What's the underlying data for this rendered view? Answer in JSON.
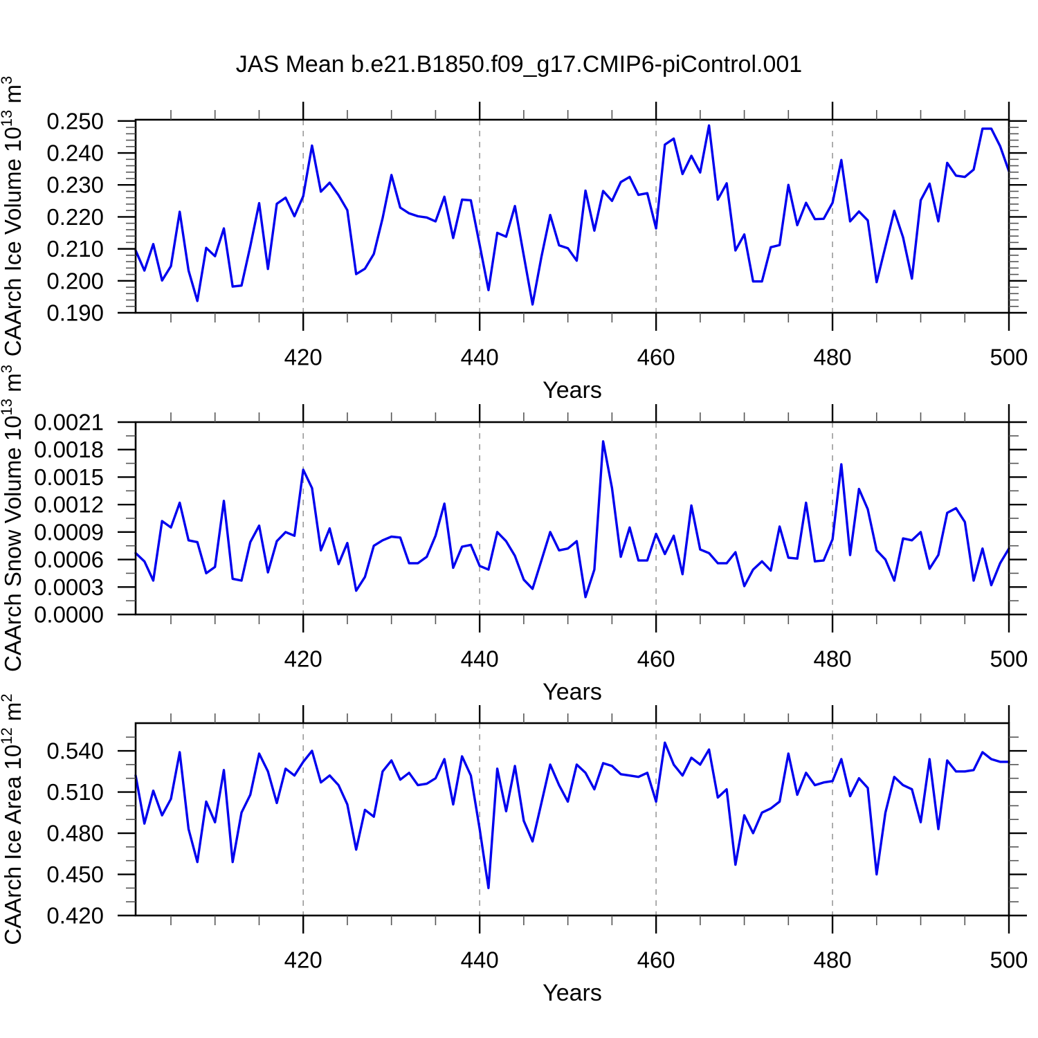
{
  "title": "JAS Mean b.e21.B1850.f09_g17.CMIP6-piControl.001",
  "colors": {
    "line": "#0000ee",
    "axis": "#000000",
    "major_tick": "#000000",
    "minor_tick": "#555555",
    "gridline": "#999999",
    "text": "#000000",
    "background": "#ffffff"
  },
  "chart_data": [
    {
      "type": "line",
      "ylabel": "CAArch Ice Volume 10¹³ m³",
      "ylabel_segments": [
        [
          "t",
          "CAArch Ice Volume 10"
        ],
        [
          "s",
          "13"
        ],
        [
          "t",
          " m"
        ],
        [
          "s",
          "3"
        ]
      ],
      "xlabel": "Years",
      "x_start": 401,
      "x_step": 1,
      "xlim": [
        401,
        500
      ],
      "x_major_ticks": [
        420,
        440,
        460,
        480,
        500
      ],
      "x_minor_step": 5,
      "x_gridlines": [
        420,
        440,
        460,
        480
      ],
      "ylim": [
        0.19,
        0.2504
      ],
      "y_major_ticks": [
        0.19,
        0.2,
        0.21,
        0.22,
        0.23,
        0.24,
        0.25
      ],
      "y_tick_labels": [
        "0.190",
        "0.200",
        "0.210",
        "0.220",
        "0.230",
        "0.240",
        "0.250"
      ],
      "y_minor_step": 0.002,
      "values": [
        0.2095,
        0.2032,
        0.2115,
        0.2001,
        0.2046,
        0.2216,
        0.2032,
        0.1937,
        0.2103,
        0.2077,
        0.2164,
        0.1982,
        0.1985,
        0.2108,
        0.2243,
        0.2037,
        0.2241,
        0.226,
        0.2202,
        0.2265,
        0.2423,
        0.2279,
        0.2307,
        0.2268,
        0.2221,
        0.2021,
        0.2038,
        0.2084,
        0.2196,
        0.2331,
        0.2229,
        0.2211,
        0.2202,
        0.2198,
        0.2186,
        0.2263,
        0.2134,
        0.2254,
        0.2252,
        0.2112,
        0.1971,
        0.215,
        0.2138,
        0.2234,
        0.2079,
        0.1926,
        0.2075,
        0.2206,
        0.2111,
        0.2102,
        0.2063,
        0.2282,
        0.2157,
        0.2281,
        0.225,
        0.2309,
        0.2325,
        0.2269,
        0.2274,
        0.2164,
        0.2426,
        0.2445,
        0.2334,
        0.2391,
        0.2339,
        0.2486,
        0.2254,
        0.2305,
        0.2095,
        0.2145,
        0.1998,
        0.1998,
        0.2105,
        0.2112,
        0.23,
        0.2174,
        0.2244,
        0.2193,
        0.2194,
        0.2244,
        0.2378,
        0.2186,
        0.2217,
        0.2189,
        0.1996,
        0.2107,
        0.2219,
        0.2136,
        0.2007,
        0.2252,
        0.2304,
        0.2186,
        0.2369,
        0.2329,
        0.2325,
        0.2348,
        0.2476,
        0.2476,
        0.2421,
        0.2343
      ]
    },
    {
      "type": "line",
      "ylabel": "CAArch Snow Volume 10¹³ m³",
      "ylabel_segments": [
        [
          "t",
          "CAArch Snow Volume 10"
        ],
        [
          "s",
          "13"
        ],
        [
          "t",
          " m"
        ],
        [
          "s",
          "3"
        ]
      ],
      "xlabel": "Years",
      "x_start": 401,
      "x_step": 1,
      "xlim": [
        401,
        500
      ],
      "x_major_ticks": [
        420,
        440,
        460,
        480,
        500
      ],
      "x_minor_step": 5,
      "x_gridlines": [
        420,
        440,
        460,
        480
      ],
      "ylim": [
        0.0,
        0.0021
      ],
      "y_major_ticks": [
        0.0,
        0.0003,
        0.0006,
        0.0009,
        0.0012,
        0.0015,
        0.0018,
        0.0021
      ],
      "y_tick_labels": [
        "0.0000",
        "0.0003",
        "0.0006",
        "0.0009",
        "0.0012",
        "0.0015",
        "0.0018",
        "0.0021"
      ],
      "y_minor_step": 0.00015,
      "values": [
        0.00067,
        0.00058,
        0.00037,
        0.00102,
        0.00095,
        0.00122,
        0.00081,
        0.00079,
        0.00045,
        0.00052,
        0.00124,
        0.00039,
        0.00037,
        0.00079,
        0.00097,
        0.00046,
        0.0008,
        0.0009,
        0.00086,
        0.00158,
        0.00138,
        0.0007,
        0.00094,
        0.00055,
        0.00078,
        0.00026,
        0.00041,
        0.00075,
        0.00081,
        0.00085,
        0.00084,
        0.00056,
        0.00056,
        0.00063,
        0.00086,
        0.00121,
        0.00051,
        0.00074,
        0.00076,
        0.00053,
        0.00049,
        0.0009,
        0.0008,
        0.00064,
        0.00038,
        0.00028,
        0.00059,
        0.0009,
        0.0007,
        0.00072,
        0.0008,
        0.00019,
        0.00049,
        0.00189,
        0.00138,
        0.00063,
        0.00095,
        0.00059,
        0.00059,
        0.00088,
        0.00066,
        0.00086,
        0.00044,
        0.00119,
        0.00071,
        0.00067,
        0.00056,
        0.00056,
        0.00068,
        0.00031,
        0.00049,
        0.00058,
        0.00048,
        0.00096,
        0.00062,
        0.00061,
        0.00122,
        0.00058,
        0.00059,
        0.00082,
        0.00164,
        0.00065,
        0.00137,
        0.00115,
        0.0007,
        0.0006,
        0.00037,
        0.00083,
        0.00081,
        0.0009,
        0.0005,
        0.00065,
        0.00111,
        0.00116,
        0.00101,
        0.00037,
        0.00072,
        0.00032,
        0.00056,
        0.00072
      ]
    },
    {
      "type": "line",
      "ylabel": "CAArch Ice Area 10¹² m²",
      "ylabel_segments": [
        [
          "t",
          "CAArch Ice Area 10"
        ],
        [
          "s",
          "12"
        ],
        [
          "t",
          " m"
        ],
        [
          "s",
          "2"
        ]
      ],
      "xlabel": "Years",
      "x_start": 401,
      "x_step": 1,
      "xlim": [
        401,
        500
      ],
      "x_major_ticks": [
        420,
        440,
        460,
        480,
        500
      ],
      "x_minor_step": 5,
      "x_gridlines": [
        420,
        440,
        460,
        480
      ],
      "ylim": [
        0.42,
        0.5602
      ],
      "y_major_ticks": [
        0.42,
        0.45,
        0.48,
        0.51,
        0.54
      ],
      "y_tick_labels": [
        "0.420",
        "0.450",
        "0.480",
        "0.510",
        "0.540"
      ],
      "y_minor_step": 0.01,
      "values": [
        0.522,
        0.487,
        0.511,
        0.493,
        0.505,
        0.539,
        0.483,
        0.459,
        0.503,
        0.488,
        0.526,
        0.459,
        0.495,
        0.508,
        0.538,
        0.525,
        0.502,
        0.527,
        0.522,
        0.532,
        0.54,
        0.517,
        0.522,
        0.515,
        0.501,
        0.468,
        0.497,
        0.492,
        0.525,
        0.533,
        0.519,
        0.524,
        0.515,
        0.516,
        0.52,
        0.534,
        0.501,
        0.536,
        0.522,
        0.483,
        0.44,
        0.527,
        0.496,
        0.529,
        0.489,
        0.474,
        0.502,
        0.53,
        0.515,
        0.503,
        0.53,
        0.524,
        0.512,
        0.531,
        0.529,
        0.523,
        0.522,
        0.521,
        0.524,
        0.503,
        0.546,
        0.53,
        0.522,
        0.535,
        0.53,
        0.541,
        0.506,
        0.512,
        0.457,
        0.493,
        0.48,
        0.495,
        0.498,
        0.503,
        0.538,
        0.508,
        0.524,
        0.515,
        0.517,
        0.518,
        0.534,
        0.507,
        0.52,
        0.513,
        0.45,
        0.495,
        0.521,
        0.515,
        0.512,
        0.488,
        0.534,
        0.483,
        0.533,
        0.525,
        0.525,
        0.526,
        0.539,
        0.534,
        0.532,
        0.532
      ]
    }
  ]
}
